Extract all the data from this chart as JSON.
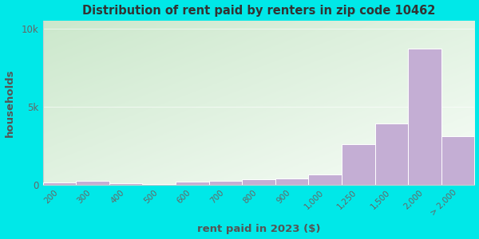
{
  "title": "Distribution of rent paid by renters in zip code 10462",
  "xlabel": "rent paid in 2023 ($)",
  "ylabel": "households",
  "background_outer": "#00e8e8",
  "bg_top_left": "#cce8cc",
  "bg_bottom_right": "#f0f8f0",
  "bar_color": "#c4aed4",
  "bar_edge_color": "#ffffff",
  "categories": [
    "200",
    "300",
    "400",
    "500",
    "600",
    "700",
    "800",
    "900",
    "1,000",
    "1,250",
    "1,500",
    "2,000",
    "> 2,000"
  ],
  "values": [
    120,
    270,
    100,
    30,
    170,
    240,
    350,
    410,
    650,
    2600,
    3900,
    8700,
    3100
  ],
  "ylim": [
    0,
    10500
  ],
  "yticks": [
    0,
    5000,
    10000
  ],
  "ytick_labels": [
    "0",
    "5k",
    "10k"
  ]
}
